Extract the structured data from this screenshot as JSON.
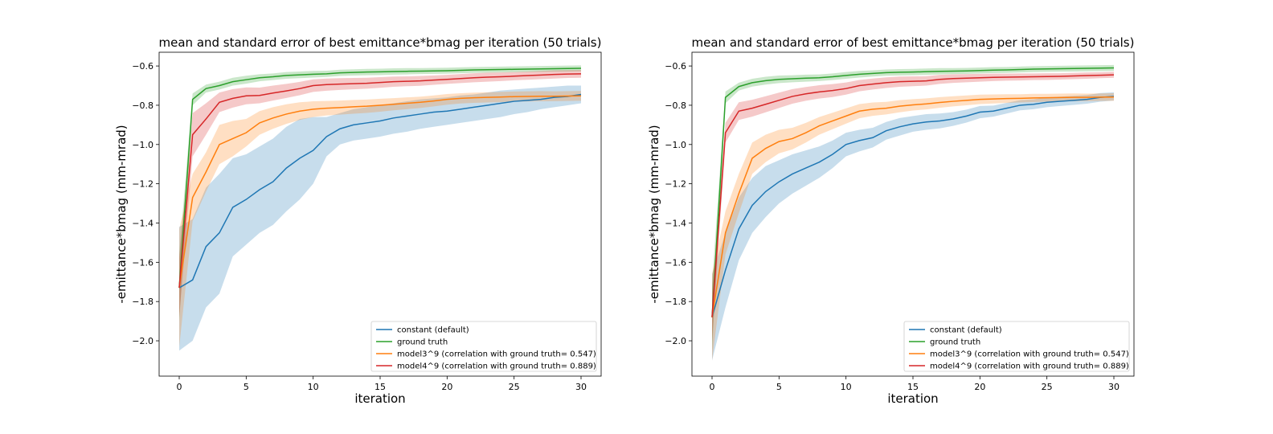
{
  "chart_data": [
    {
      "type": "line",
      "title": "mean and standard error of best emittance*bmag per iteration (50 trials)",
      "xlabel": "iteration",
      "ylabel": "-emittance*bmag (mm-mrad)",
      "xlim": [
        -1.5,
        31.5
      ],
      "ylim": [
        -2.18,
        -0.53
      ],
      "xticks": [
        0,
        5,
        10,
        15,
        20,
        25,
        30
      ],
      "yticks": [
        -2.0,
        -1.8,
        -1.6,
        -1.4,
        -1.2,
        -1.0,
        -0.8,
        -0.6
      ],
      "ytick_labels": [
        "−2.0",
        "−1.8",
        "−1.6",
        "−1.4",
        "−1.2",
        "−1.0",
        "−0.8",
        "−0.6"
      ],
      "grid": false,
      "legend_position": "lower-right",
      "x": [
        0,
        1,
        2,
        3,
        4,
        5,
        6,
        7,
        8,
        9,
        10,
        11,
        12,
        13,
        14,
        15,
        16,
        17,
        18,
        19,
        20,
        21,
        22,
        23,
        24,
        25,
        26,
        27,
        28,
        29,
        30
      ],
      "series": [
        {
          "name": "constant (default)",
          "color": "#1f77b4",
          "mean": [
            -1.73,
            -1.69,
            -1.52,
            -1.45,
            -1.32,
            -1.28,
            -1.23,
            -1.19,
            -1.12,
            -1.07,
            -1.03,
            -0.96,
            -0.92,
            -0.9,
            -0.89,
            -0.88,
            -0.865,
            -0.855,
            -0.845,
            -0.835,
            -0.83,
            -0.82,
            -0.81,
            -0.8,
            -0.79,
            -0.78,
            -0.775,
            -0.77,
            -0.76,
            -0.755,
            -0.745
          ],
          "lower": [
            -2.05,
            -2.0,
            -1.83,
            -1.76,
            -1.57,
            -1.51,
            -1.45,
            -1.41,
            -1.34,
            -1.28,
            -1.2,
            -1.06,
            -1.0,
            -0.98,
            -0.97,
            -0.96,
            -0.945,
            -0.935,
            -0.92,
            -0.91,
            -0.9,
            -0.89,
            -0.88,
            -0.87,
            -0.86,
            -0.845,
            -0.835,
            -0.82,
            -0.81,
            -0.8,
            -0.79
          ],
          "upper": [
            -1.42,
            -1.38,
            -1.22,
            -1.15,
            -1.07,
            -1.05,
            -1.01,
            -0.97,
            -0.91,
            -0.87,
            -0.86,
            -0.86,
            -0.84,
            -0.82,
            -0.81,
            -0.8,
            -0.79,
            -0.78,
            -0.77,
            -0.765,
            -0.76,
            -0.75,
            -0.745,
            -0.735,
            -0.725,
            -0.72,
            -0.715,
            -0.71,
            -0.705,
            -0.7,
            -0.7
          ]
        },
        {
          "name": "ground truth",
          "color": "#2ca02c",
          "mean": [
            -1.73,
            -0.77,
            -0.715,
            -0.7,
            -0.68,
            -0.67,
            -0.66,
            -0.655,
            -0.648,
            -0.645,
            -0.642,
            -0.64,
            -0.635,
            -0.633,
            -0.631,
            -0.63,
            -0.628,
            -0.627,
            -0.626,
            -0.625,
            -0.624,
            -0.622,
            -0.62,
            -0.619,
            -0.618,
            -0.617,
            -0.616,
            -0.615,
            -0.614,
            -0.613,
            -0.612
          ],
          "lower": [
            -1.9,
            -0.8,
            -0.735,
            -0.72,
            -0.7,
            -0.69,
            -0.678,
            -0.672,
            -0.665,
            -0.662,
            -0.659,
            -0.656,
            -0.651,
            -0.649,
            -0.647,
            -0.646,
            -0.644,
            -0.643,
            -0.641,
            -0.64,
            -0.639,
            -0.637,
            -0.635,
            -0.634,
            -0.633,
            -0.632,
            -0.631,
            -0.63,
            -0.629,
            -0.628,
            -0.627
          ],
          "upper": [
            -1.56,
            -0.74,
            -0.695,
            -0.68,
            -0.66,
            -0.65,
            -0.642,
            -0.638,
            -0.631,
            -0.628,
            -0.625,
            -0.624,
            -0.619,
            -0.617,
            -0.615,
            -0.614,
            -0.612,
            -0.611,
            -0.611,
            -0.61,
            -0.609,
            -0.607,
            -0.605,
            -0.604,
            -0.603,
            -0.602,
            -0.601,
            -0.6,
            -0.599,
            -0.598,
            -0.597
          ]
        },
        {
          "name": "model3^9 (correlation with ground truth= 0.547)",
          "color": "#ff7f0e",
          "mean": [
            -1.73,
            -1.27,
            -1.14,
            -1.0,
            -0.97,
            -0.94,
            -0.89,
            -0.865,
            -0.845,
            -0.83,
            -0.82,
            -0.815,
            -0.812,
            -0.808,
            -0.805,
            -0.8,
            -0.795,
            -0.79,
            -0.785,
            -0.778,
            -0.77,
            -0.765,
            -0.762,
            -0.76,
            -0.758,
            -0.756,
            -0.755,
            -0.754,
            -0.754,
            -0.753,
            -0.752
          ],
          "lower": [
            -2.03,
            -1.39,
            -1.24,
            -1.1,
            -1.06,
            -1.01,
            -0.95,
            -0.92,
            -0.895,
            -0.875,
            -0.86,
            -0.852,
            -0.848,
            -0.843,
            -0.839,
            -0.833,
            -0.826,
            -0.82,
            -0.814,
            -0.806,
            -0.797,
            -0.791,
            -0.788,
            -0.786,
            -0.784,
            -0.782,
            -0.781,
            -0.78,
            -0.779,
            -0.778,
            -0.777
          ],
          "upper": [
            -1.43,
            -1.15,
            -1.04,
            -0.9,
            -0.88,
            -0.87,
            -0.83,
            -0.81,
            -0.795,
            -0.785,
            -0.78,
            -0.778,
            -0.776,
            -0.773,
            -0.771,
            -0.767,
            -0.764,
            -0.76,
            -0.756,
            -0.75,
            -0.743,
            -0.739,
            -0.736,
            -0.734,
            -0.732,
            -0.73,
            -0.729,
            -0.728,
            -0.729,
            -0.728,
            -0.727
          ]
        },
        {
          "name": "model4^9 (correlation with ground truth= 0.889)",
          "color": "#d62728",
          "mean": [
            -1.73,
            -0.95,
            -0.87,
            -0.785,
            -0.765,
            -0.752,
            -0.75,
            -0.738,
            -0.727,
            -0.715,
            -0.7,
            -0.695,
            -0.692,
            -0.69,
            -0.688,
            -0.684,
            -0.68,
            -0.678,
            -0.676,
            -0.672,
            -0.668,
            -0.664,
            -0.66,
            -0.657,
            -0.655,
            -0.652,
            -0.649,
            -0.646,
            -0.643,
            -0.641,
            -0.64
          ],
          "lower": [
            -1.88,
            -1.06,
            -0.95,
            -0.835,
            -0.812,
            -0.795,
            -0.79,
            -0.776,
            -0.763,
            -0.749,
            -0.732,
            -0.726,
            -0.722,
            -0.719,
            -0.716,
            -0.711,
            -0.706,
            -0.703,
            -0.701,
            -0.696,
            -0.691,
            -0.687,
            -0.683,
            -0.68,
            -0.677,
            -0.673,
            -0.67,
            -0.667,
            -0.664,
            -0.661,
            -0.66
          ],
          "upper": [
            -1.58,
            -0.84,
            -0.79,
            -0.735,
            -0.718,
            -0.709,
            -0.71,
            -0.7,
            -0.691,
            -0.681,
            -0.668,
            -0.664,
            -0.662,
            -0.661,
            -0.66,
            -0.657,
            -0.654,
            -0.653,
            -0.651,
            -0.648,
            -0.645,
            -0.641,
            -0.637,
            -0.634,
            -0.633,
            -0.631,
            -0.628,
            -0.625,
            -0.622,
            -0.621,
            -0.62
          ]
        }
      ]
    },
    {
      "type": "line",
      "title": "mean and standard error of best emittance*bmag per iteration (50 trials)",
      "xlabel": "iteration",
      "ylabel": "-emittance*bmag (mm-mrad)",
      "xlim": [
        -1.5,
        31.5
      ],
      "ylim": [
        -2.18,
        -0.53
      ],
      "xticks": [
        0,
        5,
        10,
        15,
        20,
        25,
        30
      ],
      "yticks": [
        -2.0,
        -1.8,
        -1.6,
        -1.4,
        -1.2,
        -1.0,
        -0.8,
        -0.6
      ],
      "ytick_labels": [
        "−2.0",
        "−1.8",
        "−1.6",
        "−1.4",
        "−1.2",
        "−1.0",
        "−0.8",
        "−0.6"
      ],
      "grid": false,
      "legend_position": "lower-right",
      "x": [
        0,
        1,
        2,
        3,
        4,
        5,
        6,
        7,
        8,
        9,
        10,
        11,
        12,
        13,
        14,
        15,
        16,
        17,
        18,
        19,
        20,
        21,
        22,
        23,
        24,
        25,
        26,
        27,
        28,
        29,
        30
      ],
      "series": [
        {
          "name": "constant (default)",
          "color": "#1f77b4",
          "mean": [
            -1.88,
            -1.64,
            -1.43,
            -1.31,
            -1.24,
            -1.19,
            -1.15,
            -1.12,
            -1.09,
            -1.05,
            -1.0,
            -0.98,
            -0.965,
            -0.93,
            -0.91,
            -0.895,
            -0.885,
            -0.88,
            -0.87,
            -0.855,
            -0.835,
            -0.83,
            -0.815,
            -0.8,
            -0.795,
            -0.785,
            -0.78,
            -0.775,
            -0.77,
            -0.76,
            -0.755
          ],
          "lower": [
            -2.1,
            -1.83,
            -1.59,
            -1.45,
            -1.37,
            -1.3,
            -1.25,
            -1.21,
            -1.17,
            -1.12,
            -1.06,
            -1.035,
            -1.015,
            -0.975,
            -0.955,
            -0.935,
            -0.925,
            -0.918,
            -0.905,
            -0.888,
            -0.866,
            -0.858,
            -0.842,
            -0.826,
            -0.82,
            -0.81,
            -0.804,
            -0.798,
            -0.792,
            -0.782,
            -0.776
          ],
          "upper": [
            -1.66,
            -1.45,
            -1.27,
            -1.17,
            -1.11,
            -1.08,
            -1.05,
            -1.03,
            -1.01,
            -0.98,
            -0.94,
            -0.925,
            -0.915,
            -0.885,
            -0.865,
            -0.855,
            -0.845,
            -0.842,
            -0.835,
            -0.822,
            -0.804,
            -0.802,
            -0.788,
            -0.774,
            -0.77,
            -0.76,
            -0.756,
            -0.752,
            -0.748,
            -0.738,
            -0.734
          ]
        },
        {
          "name": "ground truth",
          "color": "#2ca02c",
          "mean": [
            -1.88,
            -0.76,
            -0.705,
            -0.685,
            -0.675,
            -0.668,
            -0.665,
            -0.662,
            -0.66,
            -0.655,
            -0.648,
            -0.642,
            -0.638,
            -0.634,
            -0.632,
            -0.631,
            -0.629,
            -0.627,
            -0.626,
            -0.625,
            -0.623,
            -0.621,
            -0.62,
            -0.618,
            -0.616,
            -0.615,
            -0.614,
            -0.613,
            -0.612,
            -0.611,
            -0.61
          ],
          "lower": [
            -2.05,
            -0.79,
            -0.725,
            -0.705,
            -0.695,
            -0.687,
            -0.683,
            -0.68,
            -0.677,
            -0.672,
            -0.665,
            -0.659,
            -0.654,
            -0.65,
            -0.648,
            -0.647,
            -0.645,
            -0.643,
            -0.641,
            -0.64,
            -0.638,
            -0.636,
            -0.635,
            -0.633,
            -0.631,
            -0.63,
            -0.629,
            -0.628,
            -0.627,
            -0.626,
            -0.625
          ],
          "upper": [
            -1.71,
            -0.73,
            -0.685,
            -0.665,
            -0.655,
            -0.649,
            -0.647,
            -0.644,
            -0.643,
            -0.638,
            -0.631,
            -0.625,
            -0.622,
            -0.618,
            -0.616,
            -0.615,
            -0.613,
            -0.611,
            -0.611,
            -0.61,
            -0.608,
            -0.606,
            -0.605,
            -0.603,
            -0.601,
            -0.6,
            -0.599,
            -0.598,
            -0.597,
            -0.596,
            -0.595
          ]
        },
        {
          "name": "model3^9 (correlation with ground truth= 0.547)",
          "color": "#ff7f0e",
          "mean": [
            -1.88,
            -1.45,
            -1.25,
            -1.07,
            -1.02,
            -0.985,
            -0.97,
            -0.94,
            -0.905,
            -0.88,
            -0.855,
            -0.83,
            -0.82,
            -0.815,
            -0.805,
            -0.798,
            -0.793,
            -0.786,
            -0.78,
            -0.775,
            -0.77,
            -0.768,
            -0.766,
            -0.765,
            -0.763,
            -0.762,
            -0.761,
            -0.76,
            -0.76,
            -0.759,
            -0.758
          ],
          "lower": [
            -2.1,
            -1.56,
            -1.35,
            -1.15,
            -1.09,
            -1.045,
            -1.025,
            -0.99,
            -0.95,
            -0.922,
            -0.894,
            -0.866,
            -0.854,
            -0.847,
            -0.836,
            -0.827,
            -0.821,
            -0.813,
            -0.806,
            -0.8,
            -0.794,
            -0.791,
            -0.788,
            -0.786,
            -0.784,
            -0.782,
            -0.781,
            -0.78,
            -0.779,
            -0.778,
            -0.777
          ],
          "upper": [
            -1.66,
            -1.34,
            -1.15,
            -0.99,
            -0.95,
            -0.925,
            -0.915,
            -0.89,
            -0.86,
            -0.838,
            -0.816,
            -0.794,
            -0.786,
            -0.783,
            -0.774,
            -0.769,
            -0.765,
            -0.759,
            -0.754,
            -0.75,
            -0.746,
            -0.745,
            -0.744,
            -0.744,
            -0.742,
            -0.742,
            -0.741,
            -0.74,
            -0.741,
            -0.74,
            -0.739
          ]
        },
        {
          "name": "model4^9 (correlation with ground truth= 0.889)",
          "color": "#d62728",
          "mean": [
            -1.88,
            -0.94,
            -0.83,
            -0.815,
            -0.795,
            -0.775,
            -0.755,
            -0.742,
            -0.732,
            -0.725,
            -0.715,
            -0.7,
            -0.692,
            -0.685,
            -0.68,
            -0.678,
            -0.676,
            -0.668,
            -0.664,
            -0.662,
            -0.66,
            -0.658,
            -0.657,
            -0.656,
            -0.655,
            -0.654,
            -0.653,
            -0.651,
            -0.649,
            -0.647,
            -0.645
          ],
          "lower": [
            -2.0,
            -0.99,
            -0.875,
            -0.858,
            -0.836,
            -0.814,
            -0.792,
            -0.777,
            -0.766,
            -0.758,
            -0.746,
            -0.729,
            -0.72,
            -0.712,
            -0.706,
            -0.703,
            -0.7,
            -0.691,
            -0.686,
            -0.683,
            -0.68,
            -0.677,
            -0.675,
            -0.674,
            -0.672,
            -0.671,
            -0.669,
            -0.667,
            -0.665,
            -0.662,
            -0.66
          ],
          "upper": [
            -1.76,
            -0.89,
            -0.785,
            -0.772,
            -0.754,
            -0.736,
            -0.718,
            -0.707,
            -0.698,
            -0.692,
            -0.684,
            -0.671,
            -0.664,
            -0.658,
            -0.654,
            -0.653,
            -0.652,
            -0.645,
            -0.642,
            -0.641,
            -0.64,
            -0.639,
            -0.639,
            -0.638,
            -0.638,
            -0.637,
            -0.637,
            -0.635,
            -0.633,
            -0.632,
            -0.63
          ]
        }
      ]
    }
  ]
}
